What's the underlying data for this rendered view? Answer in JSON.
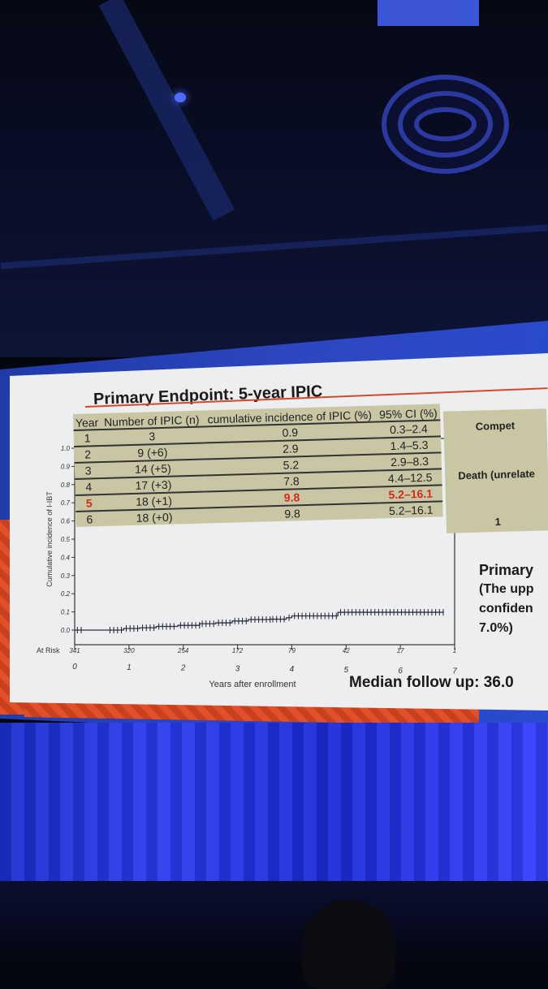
{
  "slide": {
    "title": "Primary Endpoint: 5-year IPIC",
    "table": {
      "headers": [
        "Year",
        "Number of IPIC (n)",
        "cumulative incidence of IPIC (%)",
        "95% CI (%)"
      ],
      "rows": [
        [
          "1",
          "3",
          "0.9",
          "0.3–2.4"
        ],
        [
          "2",
          "9 (+6)",
          "2.9",
          "1.4–5.3"
        ],
        [
          "3",
          "14 (+5)",
          "5.2",
          "2.9–8.3"
        ],
        [
          "4",
          "17 (+3)",
          "7.8",
          "4.4–12.5"
        ],
        [
          "5",
          "18 (+1)",
          "9.8",
          "5.2–16.1"
        ],
        [
          "6",
          "18 (+0)",
          "9.8",
          "5.2–16.1"
        ]
      ],
      "highlight_row": 4,
      "highlight_color": "#d42a1e"
    },
    "right_table": {
      "header": "Compet",
      "row1": "Death (unrelate",
      "row2": "1"
    },
    "side_text": {
      "line1": "Primary",
      "line2": "(The upp",
      "line3": "confiden",
      "line4": "7.0%)"
    },
    "median": "Median follow up: 36.0"
  },
  "chart_data": {
    "type": "line",
    "title": "",
    "xlabel": "Years after enrollment",
    "ylabel": "Cumulative incidence of I-IBT",
    "xlim": [
      0,
      7
    ],
    "ylim": [
      0,
      1.0
    ],
    "x_ticks": [
      "0",
      "1",
      "2",
      "3",
      "4",
      "5",
      "6",
      "7"
    ],
    "y_ticks": [
      "0.0",
      "0.1",
      "0.2",
      "0.3",
      "0.4",
      "0.5",
      "0.6",
      "0.7",
      "0.8",
      "0.9",
      "1.0"
    ],
    "at_risk_label": "At Risk",
    "at_risk": [
      "341",
      "320",
      "254",
      "172",
      "79",
      "42",
      "17",
      "1"
    ],
    "series": [
      {
        "name": "IPIC",
        "x": [
          0,
          0.6,
          0.9,
          1.2,
          1.5,
          1.9,
          2.3,
          2.6,
          2.9,
          3.2,
          3.6,
          3.9,
          4.0,
          4.85,
          6.8
        ],
        "y": [
          0,
          0,
          0.009,
          0.013,
          0.02,
          0.026,
          0.035,
          0.04,
          0.05,
          0.058,
          0.06,
          0.068,
          0.078,
          0.098,
          0.098
        ]
      }
    ]
  }
}
